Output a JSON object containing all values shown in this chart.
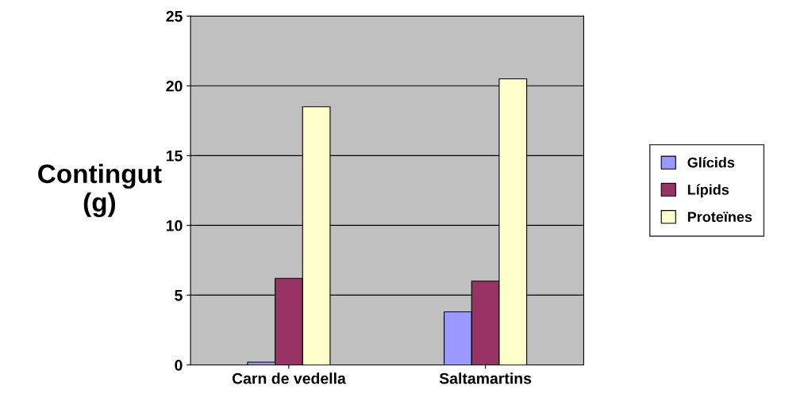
{
  "chart_data": {
    "type": "bar",
    "ylabel": "Contingut\n(g)",
    "categories": [
      "Carn de vedella",
      "Saltamartins"
    ],
    "series": [
      {
        "name": "Glícids",
        "color": "#9999ff",
        "values": [
          0.2,
          3.8
        ]
      },
      {
        "name": "Lípids",
        "color": "#993366",
        "values": [
          6.2,
          6.0
        ]
      },
      {
        "name": "Proteïnes",
        "color": "#ffffcc",
        "values": [
          18.5,
          20.5
        ]
      }
    ],
    "ylim": [
      0,
      25
    ],
    "yticks": [
      0,
      5,
      10,
      15,
      20,
      25
    ],
    "grid": "y",
    "legend": "right"
  }
}
